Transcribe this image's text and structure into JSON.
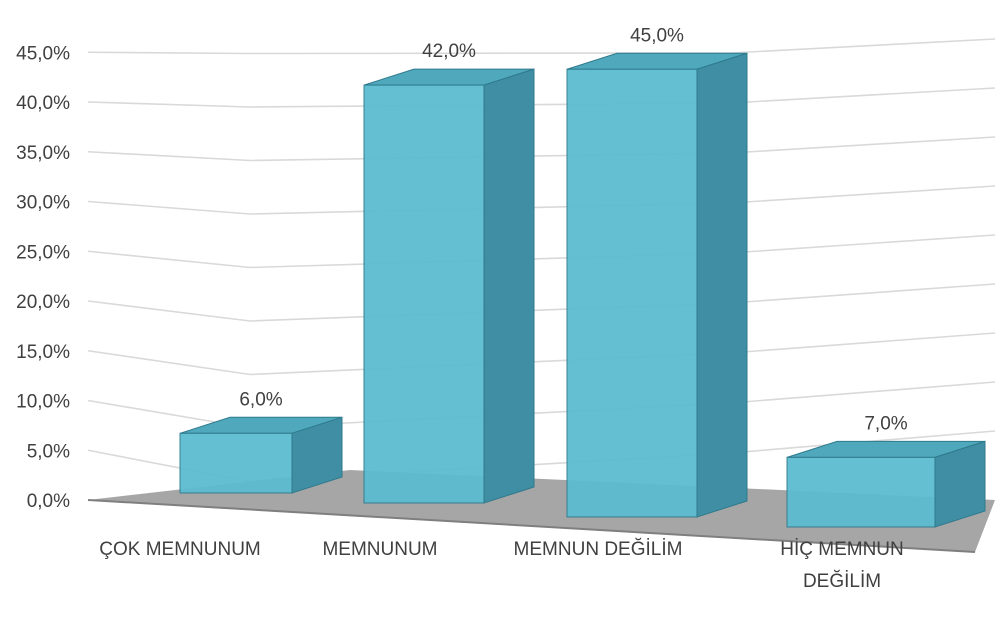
{
  "chart_data": {
    "type": "bar",
    "categories": [
      "ÇOK MEMNUNUM",
      "MEMNUNUM",
      "MEMNUN DEĞİLİM",
      "HİÇ MEMNUN DEĞİLİM"
    ],
    "category_lines": [
      [
        "ÇOK MEMNUNUM"
      ],
      [
        "MEMNUNUM"
      ],
      [
        "MEMNUN DEĞİLİM"
      ],
      [
        "HİÇ MEMNUN",
        "DEĞİLİM"
      ]
    ],
    "values": [
      6.0,
      42.0,
      45.0,
      7.0
    ],
    "data_labels": [
      "6,0%",
      "42,0%",
      "45,0%",
      "7,0%"
    ],
    "yticks": [
      "0,0%",
      "5,0%",
      "10,0%",
      "15,0%",
      "20,0%",
      "25,0%",
      "30,0%",
      "35,0%",
      "40,0%",
      "45,0%"
    ],
    "ylim": [
      0,
      45
    ],
    "title": "",
    "xlabel": "",
    "ylabel": "",
    "grid": true,
    "legend": "none",
    "style": "3d-column",
    "colors": {
      "bar_front": "#5bbccf",
      "bar_side": "#3f8ea3",
      "bar_top": "#4fa8bb",
      "floor": "#a6a6a6",
      "grid": "#d9d9d9",
      "text": "#404040"
    }
  }
}
